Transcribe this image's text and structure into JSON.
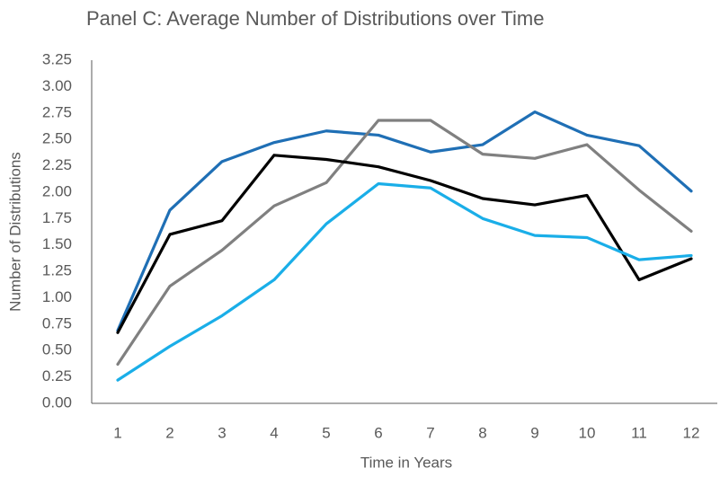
{
  "chart_data": {
    "type": "line",
    "title": "Panel C: Average Number of Distributions over Time",
    "x_label": "Time in Years",
    "y_label": "Number of Distributions",
    "categories": [
      "1",
      "2",
      "3",
      "4",
      "5",
      "6",
      "7",
      "8",
      "9",
      "10",
      "11",
      "12"
    ],
    "series": [
      {
        "color": "#1f6fb5",
        "values": [
          0.69,
          1.83,
          2.29,
          2.47,
          2.58,
          2.54,
          2.38,
          2.45,
          2.76,
          2.54,
          2.44,
          2.01
        ]
      },
      {
        "color": "#808080",
        "values": [
          0.37,
          1.11,
          1.45,
          1.87,
          2.09,
          2.68,
          2.68,
          2.36,
          2.32,
          2.45,
          2.02,
          1.63
        ]
      },
      {
        "color": "#000000",
        "values": [
          0.67,
          1.6,
          1.73,
          2.35,
          2.31,
          2.24,
          2.11,
          1.94,
          1.88,
          1.97,
          1.17,
          1.37
        ]
      },
      {
        "color": "#1aaee8",
        "values": [
          0.22,
          0.54,
          0.83,
          1.17,
          1.7,
          2.08,
          2.04,
          1.75,
          1.59,
          1.57,
          1.36,
          1.4
        ]
      }
    ],
    "ylim": [
      0,
      3.25
    ],
    "yticks": [
      {
        "value": 0,
        "label": "0.00"
      },
      {
        "value": 0.25,
        "label": "0.25"
      },
      {
        "value": 0.5,
        "label": "0.50"
      },
      {
        "value": 0.75,
        "label": "0.75"
      },
      {
        "value": 1,
        "label": "1.00"
      },
      {
        "value": 1.25,
        "label": "1.25"
      },
      {
        "value": 1.5,
        "label": "1.50"
      },
      {
        "value": 1.75,
        "label": "1.75"
      },
      {
        "value": 2,
        "label": "2.00"
      },
      {
        "value": 2.25,
        "label": "2.25"
      },
      {
        "value": 2.5,
        "label": "2.50"
      },
      {
        "value": 2.75,
        "label": "2.75"
      },
      {
        "value": 3,
        "label": "3.00"
      },
      {
        "value": 3.25,
        "label": "3.25"
      }
    ],
    "grid": false
  }
}
